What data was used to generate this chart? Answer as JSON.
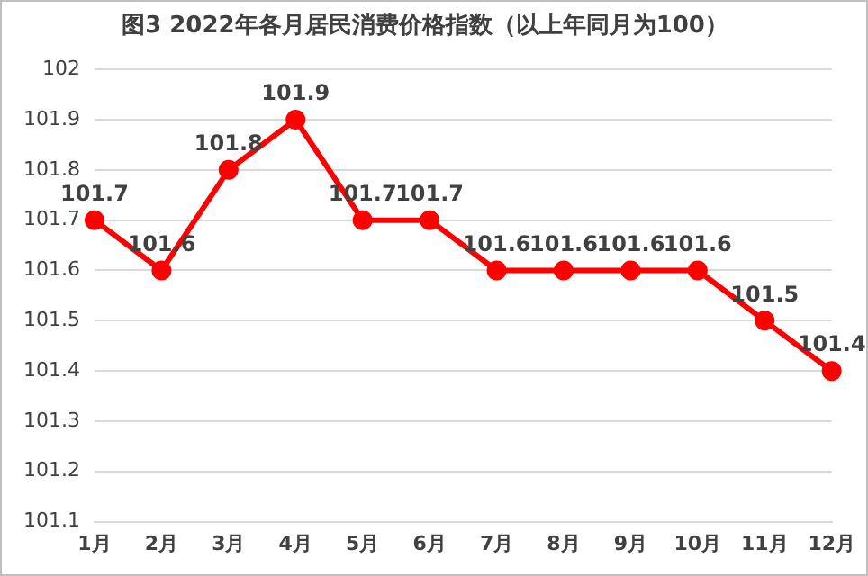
{
  "chart_data": {
    "type": "line",
    "title": "图3 2022年各月居民消费价格指数（以上年同月为100）",
    "categories": [
      "1月",
      "2月",
      "3月",
      "4月",
      "5月",
      "6月",
      "7月",
      "8月",
      "9月",
      "10月",
      "11月",
      "12月"
    ],
    "series": [
      {
        "color": "#ff0000",
        "values": [
          101.7,
          101.6,
          101.8,
          101.9,
          101.7,
          101.7,
          101.6,
          101.6,
          101.6,
          101.6,
          101.5,
          101.4
        ]
      }
    ],
    "ylim": [
      101.1,
      102
    ],
    "yticks": [
      101.1,
      101.2,
      101.3,
      101.4,
      101.5,
      101.6,
      101.7,
      101.8,
      101.9,
      102
    ],
    "grid": "y",
    "legend": false,
    "marker": "circle",
    "line_style": "solid",
    "data_labels": true
  }
}
